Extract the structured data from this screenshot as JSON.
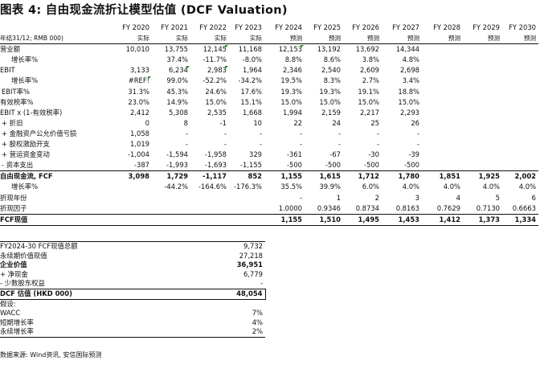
{
  "title": "图表 4: 自由现金流折让模型估值 (DCF Valuation)",
  "header": {
    "corner": "年结31/12; RMB 000)",
    "years": [
      "FY 2020",
      "FY 2021",
      "FY 2022",
      "FY 2023",
      "FY 2024",
      "FY 2025",
      "FY 2026",
      "FY 2027",
      "FY 2028",
      "FY 2029",
      "FY 2030"
    ],
    "kinds": [
      "实际",
      "实际",
      "实际",
      "实际",
      "预测",
      "预测",
      "预测",
      "预测",
      "预测",
      "预测",
      "预测"
    ]
  },
  "rows": [
    {
      "label": "营业额",
      "values": [
        "10,010",
        "13,755",
        "12,145",
        "11,168",
        "12,153",
        "13,192",
        "13,692",
        "14,344",
        "",
        "",
        ""
      ]
    },
    {
      "label": "增长率%",
      "values": [
        "",
        "37.4%",
        "-11.7%",
        "-8.0%",
        "8.8%",
        "8.6%",
        "3.8%",
        "4.8%",
        "",
        "",
        ""
      ]
    },
    {
      "label": "EBIT",
      "values": [
        "3,133",
        "6,234",
        "2,983",
        "1,964",
        "2,346",
        "2,540",
        "2,609",
        "2,698",
        "",
        "",
        ""
      ]
    },
    {
      "label": "增长率%",
      "values": [
        "#REF!",
        "99.0%",
        "-52.2%",
        "-34.2%",
        "19.5%",
        "8.3%",
        "2.7%",
        "3.4%",
        "",
        "",
        ""
      ]
    },
    {
      "label": "EBIT率%",
      "values": [
        "31.3%",
        "45.3%",
        "24.6%",
        "17.6%",
        "19.3%",
        "19.3%",
        "19.1%",
        "18.8%",
        "",
        "",
        ""
      ]
    },
    {
      "label": "有效税率%",
      "values": [
        "23.0%",
        "14.9%",
        "15.0%",
        "15.1%",
        "15.0%",
        "15.0%",
        "15.0%",
        "15.0%",
        "",
        "",
        ""
      ]
    },
    {
      "label": "EBIT x (1-有效税率)",
      "values": [
        "2,412",
        "5,308",
        "2,535",
        "1,668",
        "1,994",
        "2,159",
        "2,217",
        "2,293",
        "",
        "",
        ""
      ]
    },
    {
      "label": "+ 折旧",
      "values": [
        "0",
        "8",
        "-1",
        "10",
        "22",
        "24",
        "25",
        "26",
        "",
        "",
        ""
      ]
    },
    {
      "label": "+ 金融资产公允价值亏损",
      "values": [
        "1,058",
        "-",
        "-",
        "-",
        "-",
        "-",
        "-",
        "-",
        "",
        "",
        ""
      ]
    },
    {
      "label": "+ 股权激励开支",
      "values": [
        "1,019",
        "-",
        "-",
        "-",
        "-",
        "-",
        "-",
        "-",
        "",
        "",
        ""
      ]
    },
    {
      "label": "+ 营运资金变动",
      "values": [
        "-1,004",
        "-1,594",
        "-1,958",
        "329",
        "-361",
        "-67",
        "-30",
        "-39",
        "",
        "",
        ""
      ]
    },
    {
      "label": "- 资本支出",
      "values": [
        "-387",
        "-1,993",
        "-1,693",
        "-1,155",
        "-500",
        "-500",
        "-500",
        "-500",
        "",
        "",
        ""
      ]
    },
    {
      "label": "自由现金流, FCF",
      "values": [
        "3,098",
        "1,729",
        "-1,117",
        "852",
        "1,155",
        "1,615",
        "1,712",
        "1,780",
        "1,851",
        "1,925",
        "2,002"
      ]
    },
    {
      "label": "增长率%",
      "values": [
        "",
        "-44.2%",
        "-164.6%",
        "-176.3%",
        "35.5%",
        "39.9%",
        "6.0%",
        "4.0%",
        "4.0%",
        "4.0%",
        "4.0%"
      ]
    },
    {
      "label": "折现年份",
      "values": [
        "",
        "",
        "",
        "",
        "-",
        "1",
        "2",
        "3",
        "4",
        "5",
        "6"
      ]
    },
    {
      "label": "折现因子",
      "values": [
        "",
        "",
        "",
        "",
        "1.0000",
        "0.9346",
        "0.8734",
        "0.8163",
        "0.7629",
        "0.7130",
        "0.6663"
      ]
    },
    {
      "label": "FCF现值",
      "values": [
        "",
        "",
        "",
        "",
        "1,155",
        "1,510",
        "1,495",
        "1,453",
        "1,412",
        "1,373",
        "1,334"
      ]
    }
  ],
  "summary": [
    {
      "label": "FY2024-30 FCF现值总额",
      "value": "9,732"
    },
    {
      "label": "永续期价值现值",
      "value": "27,218"
    },
    {
      "label": "企业价值",
      "value": "36,951"
    },
    {
      "label": "+ 净现金",
      "value": "6,779"
    },
    {
      "label": "- 少数股东权益",
      "value": "-"
    },
    {
      "label": "DCF 估值 (HKD 000)",
      "value": "48,054"
    },
    {
      "label": "假设:",
      "value": ""
    },
    {
      "label": "WACC",
      "value": "7%"
    },
    {
      "label": "短期增长率",
      "value": "4%"
    },
    {
      "label": "永续增长率",
      "value": "2%"
    }
  ],
  "source": "数据来源: Wind资讯, 安信国际预测",
  "colors": {
    "flag": "#2f8a2f",
    "text": "#111111"
  }
}
